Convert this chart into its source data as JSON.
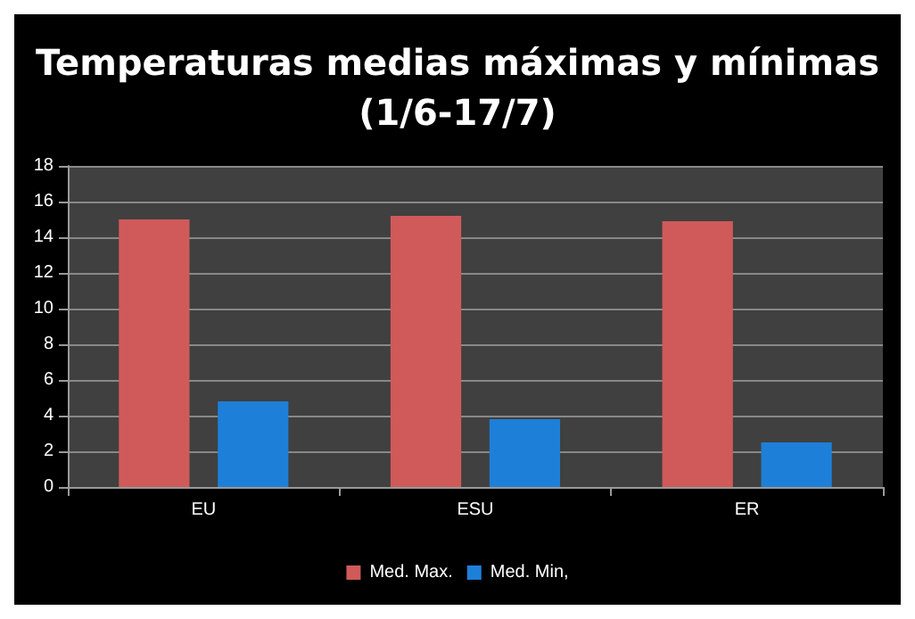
{
  "chart_data": {
    "type": "bar",
    "title": "Temperaturas medias máximas y mínimas\n(1/6-17/7)",
    "categories": [
      "EU",
      "ESU",
      "ER"
    ],
    "series": [
      {
        "name": "Med. Max.",
        "color": "#d05a5a",
        "values": [
          15,
          15.2,
          14.9
        ]
      },
      {
        "name": "Med. Min,",
        "color": "#1e7fd8",
        "values": [
          4.8,
          3.8,
          2.5
        ]
      }
    ],
    "ylim": [
      0,
      18
    ],
    "yticks": [
      0,
      2,
      4,
      6,
      8,
      10,
      12,
      14,
      16,
      18
    ],
    "grid": "y",
    "legend": "bottom"
  }
}
